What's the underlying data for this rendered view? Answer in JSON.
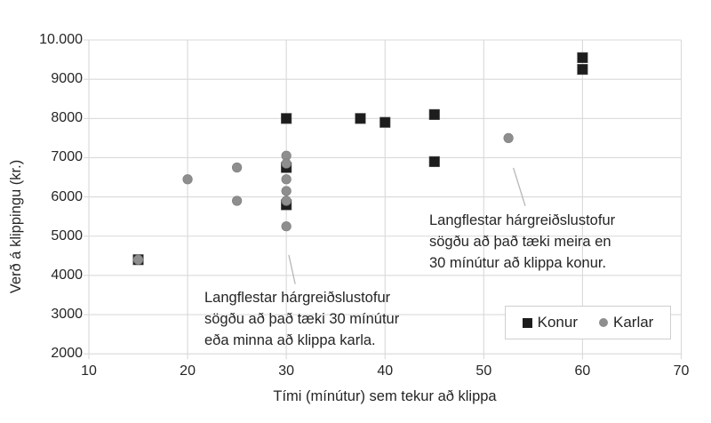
{
  "chart_data": {
    "type": "scatter",
    "xlabel": "Tími (mínútur) sem tekur að klippa",
    "ylabel": "Verð á klippingu (kr.)",
    "xlim": [
      10,
      70
    ],
    "ylim": [
      2000,
      10000
    ],
    "x_ticks": [
      10,
      20,
      30,
      40,
      50,
      60,
      70
    ],
    "x_tick_labels": [
      "10",
      "20",
      "30",
      "40",
      "50",
      "60",
      "70"
    ],
    "y_ticks": [
      2000,
      3000,
      4000,
      5000,
      6000,
      7000,
      8000,
      9000,
      10000
    ],
    "y_tick_labels": [
      "2000",
      "3000",
      "4000",
      "5000",
      "6000",
      "7000",
      "8000",
      "9000",
      "10.000"
    ],
    "grid": true,
    "legend_position": "inside-bottom-right",
    "series": [
      {
        "name": "Konur",
        "marker": "square",
        "color": "#1d1d1d",
        "points": [
          [
            15,
            4400
          ],
          [
            30,
            8000
          ],
          [
            30,
            6750
          ],
          [
            30,
            5800
          ],
          [
            37.5,
            8000
          ],
          [
            40,
            7900
          ],
          [
            45,
            8100
          ],
          [
            45,
            6900
          ],
          [
            60,
            9550
          ],
          [
            60,
            9250
          ]
        ]
      },
      {
        "name": "Karlar",
        "marker": "circle",
        "color": "#8e8e8e",
        "points": [
          [
            15,
            4400
          ],
          [
            20,
            6450
          ],
          [
            25,
            6750
          ],
          [
            25,
            5900
          ],
          [
            30,
            7050
          ],
          [
            30,
            6850
          ],
          [
            30,
            6450
          ],
          [
            30,
            6150
          ],
          [
            30,
            5900
          ],
          [
            30,
            5250
          ],
          [
            52.5,
            7500
          ]
        ]
      }
    ],
    "annotations": [
      {
        "text": "Langflestar hárgreiðslustofur\nsögðu að það tæki 30 mínútur\neða minna að klippa karla.",
        "leader_from": [
          30.25,
          4520
        ],
        "leader_to": [
          30.9,
          3780
        ]
      },
      {
        "text": "Langflestar hárgreiðslustofur\nsögðu að það tæki meira en\n30 mínútur að klippa konur.",
        "leader_from": [
          53.0,
          6740
        ],
        "leader_to": [
          54.2,
          5770
        ]
      }
    ]
  },
  "colors": {
    "konur_marker": "#1d1d1d",
    "karlar_marker": "#8e8e8e",
    "gridline": "#d9d9d9",
    "leader_line": "#b7b7b7",
    "text": "#252525",
    "legend_border": "#cfcfcf",
    "background": "#ffffff"
  }
}
